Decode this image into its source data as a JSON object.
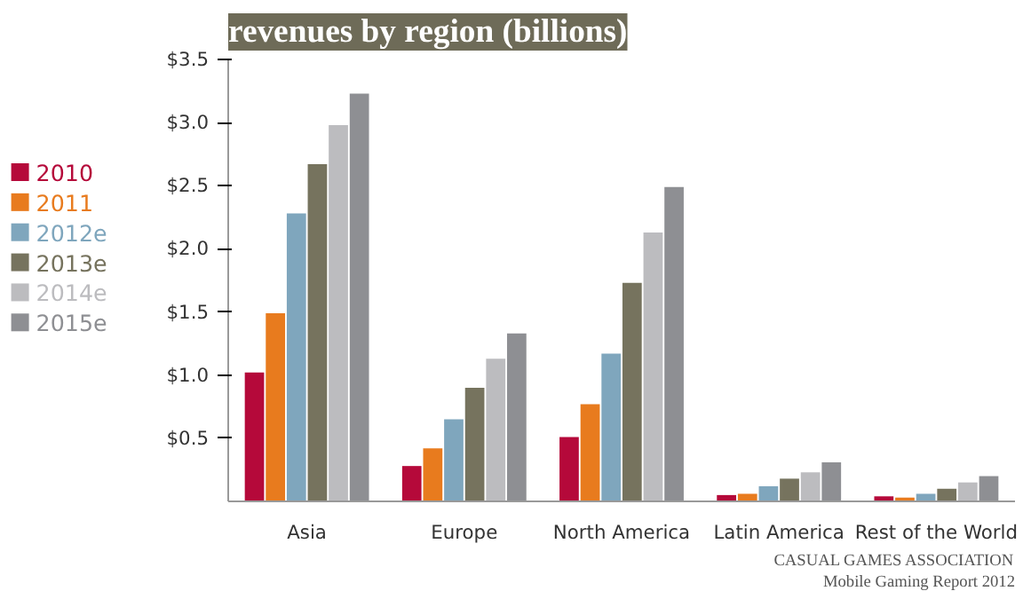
{
  "chart_data": {
    "type": "bar",
    "title": "revenues by region (billions)",
    "categories": [
      "Asia",
      "Europe",
      "North America",
      "Latin America",
      "Rest of the World"
    ],
    "series": [
      {
        "name": "2010",
        "color": "#b5093a",
        "values": [
          1.02,
          0.28,
          0.51,
          0.05,
          0.04
        ]
      },
      {
        "name": "2011",
        "color": "#e87b1e",
        "values": [
          1.49,
          0.42,
          0.77,
          0.06,
          0.03
        ]
      },
      {
        "name": "2012e",
        "color": "#7fa6bd",
        "values": [
          2.28,
          0.65,
          1.17,
          0.12,
          0.06
        ]
      },
      {
        "name": "2013e",
        "color": "#76735e",
        "values": [
          2.67,
          0.9,
          1.73,
          0.18,
          0.1
        ]
      },
      {
        "name": "2014e",
        "color": "#bcbcbf",
        "values": [
          2.98,
          1.13,
          2.13,
          0.23,
          0.15
        ]
      },
      {
        "name": "2015e",
        "color": "#8e8f93",
        "values": [
          3.23,
          1.33,
          2.49,
          0.31,
          0.2
        ]
      }
    ],
    "ylim": [
      0,
      3.5
    ],
    "yticks": [
      {
        "value": 0.5,
        "label": "$0.5"
      },
      {
        "value": 1.0,
        "label": "$1.0"
      },
      {
        "value": 1.5,
        "label": "$1.5"
      },
      {
        "value": 2.0,
        "label": "$2.0"
      },
      {
        "value": 2.5,
        "label": "$2.5"
      },
      {
        "value": 3.0,
        "label": "$3.0"
      },
      {
        "value": 3.5,
        "label": "$3.5"
      }
    ],
    "grid": false,
    "legend": "left",
    "annotations": [
      "Mobile Gaming Report 2012",
      "CASUAL GAMES ASSOCIATION"
    ]
  }
}
